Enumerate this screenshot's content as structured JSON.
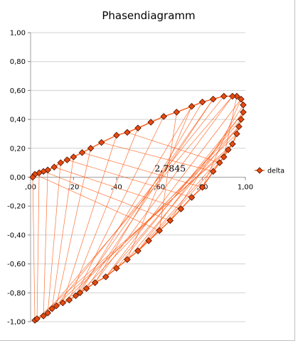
{
  "chart_data": {
    "type": "scatter",
    "title": "Phasendiagramm",
    "xlim": [
      0,
      1
    ],
    "ylim": [
      -1,
      1
    ],
    "x_ticks": [
      0,
      0.2,
      0.4,
      0.6,
      0.8,
      1.0
    ],
    "x_tick_labels": [
      ",00",
      ",20",
      ",40",
      ",60",
      ",80",
      "1,00"
    ],
    "y_ticks": [
      1,
      0.8,
      0.6,
      0.4,
      0.2,
      0,
      -0.2,
      -0.4,
      -0.6,
      -0.8,
      -1
    ],
    "y_tick_labels": [
      "1,00",
      "0,80",
      "0,60",
      "0,40",
      "0,20",
      "0,00",
      "-0,20",
      "-0,40",
      "-0,60",
      "-0,80",
      "-1,00"
    ],
    "grid": "horizontal",
    "legend_position": "right",
    "annotation": "2,7845",
    "annotation_position": [
      0.65,
      0.04
    ],
    "series_color": "#ff5a14",
    "marker_color": "#cc3300",
    "series": [
      {
        "name": "delta",
        "values": [
          [
            0.02,
            -0.99
          ],
          [
            0.03,
            -0.98
          ],
          [
            0.06,
            -0.96
          ],
          [
            0.08,
            -0.94
          ],
          [
            0.1,
            -0.91
          ],
          [
            0.12,
            -0.89
          ],
          [
            0.15,
            -0.87
          ],
          [
            0.18,
            -0.85
          ],
          [
            0.21,
            -0.82
          ],
          [
            0.23,
            -0.8
          ],
          [
            0.26,
            -0.77
          ],
          [
            0.3,
            -0.73
          ],
          [
            0.35,
            -0.69
          ],
          [
            0.4,
            -0.63
          ],
          [
            0.45,
            -0.57
          ],
          [
            0.5,
            -0.51
          ],
          [
            0.55,
            -0.44
          ],
          [
            0.6,
            -0.37
          ],
          [
            0.65,
            -0.3
          ],
          [
            0.7,
            -0.22
          ],
          [
            0.75,
            -0.14
          ],
          [
            0.8,
            -0.07
          ],
          [
            0.85,
            0.04
          ],
          [
            0.88,
            0.1
          ],
          [
            0.9,
            0.14
          ],
          [
            0.92,
            0.19
          ],
          [
            0.94,
            0.23
          ],
          [
            0.96,
            0.3
          ],
          [
            0.97,
            0.35
          ],
          [
            0.98,
            0.4
          ],
          [
            0.99,
            0.45
          ],
          [
            0.99,
            0.5
          ],
          [
            0.98,
            0.54
          ],
          [
            0.96,
            0.56
          ],
          [
            0.94,
            0.56
          ],
          [
            0.9,
            0.56
          ],
          [
            0.85,
            0.54
          ],
          [
            0.8,
            0.52
          ],
          [
            0.75,
            0.49
          ],
          [
            0.68,
            0.45
          ],
          [
            0.62,
            0.42
          ],
          [
            0.56,
            0.38
          ],
          [
            0.5,
            0.34
          ],
          [
            0.45,
            0.31
          ],
          [
            0.4,
            0.29
          ],
          [
            0.33,
            0.24
          ],
          [
            0.28,
            0.2
          ],
          [
            0.24,
            0.17
          ],
          [
            0.2,
            0.14
          ],
          [
            0.17,
            0.12
          ],
          [
            0.14,
            0.1
          ],
          [
            0.11,
            0.07
          ],
          [
            0.08,
            0.05
          ],
          [
            0.06,
            0.04
          ],
          [
            0.04,
            0.03
          ],
          [
            0.02,
            0.02
          ],
          [
            0.01,
            0.0
          ]
        ]
      }
    ]
  }
}
